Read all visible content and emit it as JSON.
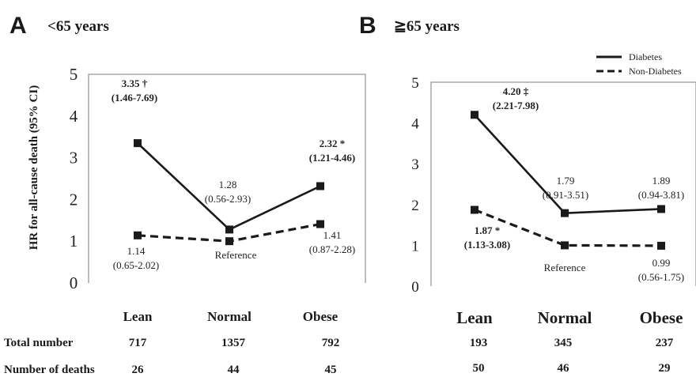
{
  "figure": {
    "ylabel": "HR for all-cause death  (95% CI)",
    "row_labels": [
      "Total number",
      "Number of deaths"
    ],
    "legend": [
      {
        "label": "Diabetes",
        "style": "solid"
      },
      {
        "label": "Non-Diabetes",
        "style": "dashed"
      }
    ],
    "colors": {
      "line": "#1a1a1a",
      "axis": "#999999",
      "text": "#222222"
    }
  },
  "chart_data": [
    {
      "panel": "A",
      "title": "<65 years",
      "type": "line",
      "categories": [
        "Lean",
        "Normal",
        "Obese"
      ],
      "ylim": [
        0,
        5
      ],
      "yticks": [
        "0",
        "1",
        "2",
        "3",
        "4",
        "5"
      ],
      "series": [
        {
          "name": "Diabetes",
          "style": "solid",
          "values": [
            3.35,
            1.28,
            2.32
          ]
        },
        {
          "name": "Non-Diabetes",
          "style": "dashed",
          "values": [
            1.14,
            1.0,
            1.41
          ]
        }
      ],
      "annotations": [
        {
          "lines": [
            "3.35 †",
            "(1.46-7.69)"
          ],
          "bold": true
        },
        {
          "lines": [
            "1.28",
            "(0.56-2.93)"
          ],
          "bold": false
        },
        {
          "lines": [
            "2.32 *",
            "(1.21-4.46)"
          ],
          "bold": true
        },
        {
          "lines": [
            "1.14",
            "(0.65-2.02)"
          ],
          "bold": false
        },
        {
          "lines": [
            "Reference"
          ],
          "bold": false
        },
        {
          "lines": [
            "1.41",
            "(0.87-2.28)"
          ],
          "bold": false
        }
      ],
      "total_number": [
        "717",
        "1357",
        "792"
      ],
      "number_of_deaths": [
        "26",
        "44",
        "45"
      ]
    },
    {
      "panel": "B",
      "title": "≧65 years",
      "type": "line",
      "categories": [
        "Lean",
        "Normal",
        "Obese"
      ],
      "ylim": [
        0,
        5
      ],
      "yticks": [
        "0",
        "1",
        "2",
        "3",
        "4",
        "5"
      ],
      "series": [
        {
          "name": "Diabetes",
          "style": "solid",
          "values": [
            4.2,
            1.79,
            1.89
          ]
        },
        {
          "name": "Non-Diabetes",
          "style": "dashed",
          "values": [
            1.87,
            1.0,
            0.99
          ]
        }
      ],
      "annotations": [
        {
          "lines": [
            "4.20 ‡",
            "(2.21-7.98)"
          ],
          "bold": true
        },
        {
          "lines": [
            "1.79",
            "(0.91-3.51)"
          ],
          "bold": false
        },
        {
          "lines": [
            "1.89",
            "(0.94-3.81)"
          ],
          "bold": false
        },
        {
          "lines": [
            "1.87 *",
            "(1.13-3.08)"
          ],
          "bold": true
        },
        {
          "lines": [
            "Reference"
          ],
          "bold": false
        },
        {
          "lines": [
            "0.99",
            "(0.56-1.75)"
          ],
          "bold": false
        }
      ],
      "total_number": [
        "193",
        "345",
        "237"
      ],
      "number_of_deaths": [
        "50",
        "46",
        "29"
      ]
    }
  ]
}
